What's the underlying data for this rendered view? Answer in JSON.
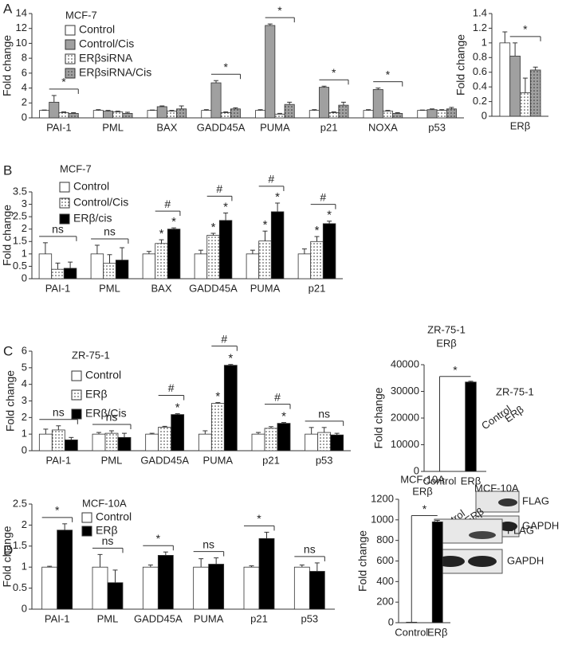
{
  "panels": [
    "A",
    "B",
    "C",
    "D"
  ],
  "chart_data": [
    {
      "type": "bar",
      "title": "MCF-7",
      "ylabel": "Fold change",
      "categories": [
        "PAI-1",
        "PML",
        "BAX",
        "GADD45A",
        "PUMA",
        "p21",
        "NOXA",
        "p53"
      ],
      "series": [
        {
          "name": "Control",
          "color": "#ffffff",
          "values": [
            1,
            1,
            1,
            1,
            1,
            1,
            1,
            1
          ],
          "errors": [
            0.05,
            0.1,
            0.05,
            0.1,
            0.1,
            0.1,
            0.1,
            0.05
          ]
        },
        {
          "name": "Control/Cis",
          "color": "#a0a0a0",
          "values": [
            2.1,
            0.9,
            1.5,
            4.7,
            12.4,
            4.1,
            3.8,
            1.1
          ],
          "errors": [
            0.9,
            0.1,
            0.1,
            0.3,
            0.2,
            0.15,
            0.2,
            0.1
          ]
        },
        {
          "name": "ERβsiRNA",
          "color": "#ffffff",
          "pattern": "dots",
          "values": [
            0.7,
            0.8,
            0.9,
            0.7,
            0.5,
            0.7,
            0.9,
            1.0
          ],
          "errors": [
            0.1,
            0.1,
            0.1,
            0.1,
            0.1,
            0.1,
            0.1,
            0.1
          ]
        },
        {
          "name": "ERβsiRNA/Cis",
          "color": "#a0a0a0",
          "pattern": "dots",
          "values": [
            0.6,
            0.6,
            1.2,
            1.2,
            1.8,
            1.7,
            0.6,
            1.2
          ],
          "errors": [
            0.1,
            0.15,
            0.4,
            0.15,
            0.3,
            0.4,
            0.1,
            0.2
          ]
        }
      ],
      "brackets": [
        "*",
        null,
        null,
        "*",
        "*",
        "*",
        "*",
        null
      ],
      "ylim": [
        0,
        14
      ],
      "yticks": [
        0,
        2,
        4,
        6,
        8,
        10,
        12,
        14
      ]
    },
    {
      "type": "bar",
      "ylabel": "Fold change",
      "categories": [
        "ERβ"
      ],
      "series": [
        {
          "color": "#ffffff",
          "values": [
            1
          ],
          "errors": [
            0.15
          ]
        },
        {
          "color": "#a0a0a0",
          "values": [
            0.82
          ],
          "errors": [
            0.18
          ]
        },
        {
          "color": "#ffffff",
          "pattern": "dots",
          "values": [
            0.32
          ],
          "errors": [
            0.2
          ]
        },
        {
          "color": "#a0a0a0",
          "pattern": "dots",
          "values": [
            0.63
          ],
          "errors": [
            0.04
          ]
        }
      ],
      "brackets": [
        "*"
      ],
      "ylim": [
        0,
        1.4
      ],
      "yticks": [
        0,
        0.2,
        0.4,
        0.6,
        0.8,
        1,
        1.2,
        1.4
      ]
    },
    {
      "type": "bar",
      "title": "MCF-7",
      "ylabel": "Fold change",
      "categories": [
        "PAI-1",
        "PML",
        "BAX",
        "GADD45A",
        "PUMA",
        "p21"
      ],
      "series": [
        {
          "name": "Control",
          "color": "#ffffff",
          "values": [
            1,
            1,
            1,
            1,
            1,
            1
          ],
          "errors": [
            0.45,
            0.35,
            0.1,
            0.15,
            0.15,
            0.2
          ]
        },
        {
          "name": "Control/Cis",
          "color": "#ffffff",
          "pattern": "dots",
          "values": [
            0.38,
            0.62,
            1.42,
            1.75,
            1.52,
            1.5
          ],
          "errors": [
            0.25,
            0.35,
            0.15,
            0.08,
            0.4,
            0.2
          ],
          "marks": [
            null,
            null,
            "*",
            "*",
            "*",
            "*"
          ]
        },
        {
          "name": "ERβ/cis",
          "color": "#000000",
          "values": [
            0.42,
            0.75,
            2.0,
            2.35,
            2.7,
            2.22
          ],
          "errors": [
            0.25,
            0.5,
            0.05,
            0.3,
            0.35,
            0.1
          ],
          "marks": [
            null,
            null,
            "*",
            "*",
            "*",
            "*"
          ]
        }
      ],
      "brackets": [
        "ns",
        "ns",
        "#",
        "#",
        "#",
        "#"
      ],
      "ylim": [
        0,
        3.5
      ],
      "yticks": [
        0,
        0.5,
        1,
        1.5,
        2,
        2.5,
        3,
        3.5
      ]
    },
    {
      "type": "bar",
      "title": "ZR-75-1",
      "ylabel": "Fold change",
      "categories": [
        "PAI-1",
        "PML",
        "GADD45A",
        "PUMA",
        "p21",
        "p53"
      ],
      "series": [
        {
          "name": "Control",
          "color": "#ffffff",
          "values": [
            1,
            1,
            1,
            1,
            1,
            1
          ],
          "errors": [
            0.3,
            0.1,
            0.05,
            0.2,
            0.1,
            0.4
          ]
        },
        {
          "name": "ERβ",
          "color": "#ffffff",
          "pattern": "dots",
          "values": [
            1.25,
            1.05,
            1.42,
            2.85,
            1.35,
            1.1
          ],
          "errors": [
            0.25,
            0.15,
            0.05,
            0.05,
            0.1,
            0.3
          ],
          "marks": [
            null,
            null,
            null,
            "*",
            null,
            null
          ]
        },
        {
          "name": "ERβ/Cis",
          "color": "#000000",
          "values": [
            0.65,
            0.8,
            2.18,
            5.15,
            1.65,
            0.95
          ],
          "errors": [
            0.15,
            0.25,
            0.05,
            0.05,
            0.05,
            0.1
          ],
          "marks": [
            null,
            null,
            "*",
            "*",
            "*",
            null
          ]
        }
      ],
      "brackets": [
        "ns",
        "ns",
        "#",
        "#",
        "#",
        "ns"
      ],
      "ylim": [
        0,
        6
      ],
      "yticks": [
        0,
        1,
        2,
        3,
        4,
        5,
        6
      ]
    },
    {
      "type": "bar",
      "title": [
        "ZR-75-1",
        "ERβ"
      ],
      "ylabel": "Fold change",
      "categories": [
        "Control",
        "ERβ"
      ],
      "series": [
        {
          "color": "#000000",
          "values": [
            1,
            33500
          ],
          "errors": [
            null,
            300
          ]
        }
      ],
      "bracket": "*",
      "ylim": [
        0,
        40000
      ],
      "yticks": [
        0,
        10000,
        20000,
        30000,
        40000
      ]
    },
    {
      "type": "bar",
      "title": "MCF-10A",
      "ylabel": "Fold change",
      "categories": [
        "PAI-1",
        "PML",
        "GADD45A",
        "PUMA",
        "p21",
        "p53"
      ],
      "series": [
        {
          "name": "Control",
          "color": "#ffffff",
          "values": [
            1,
            1,
            1,
            1,
            1,
            1
          ],
          "errors": [
            0.02,
            0.3,
            0.05,
            0.2,
            0.03,
            0.05
          ]
        },
        {
          "name": "ERβ",
          "color": "#000000",
          "values": [
            1.88,
            0.63,
            1.28,
            1.07,
            1.68,
            0.9
          ],
          "errors": [
            0.15,
            0.3,
            0.08,
            0.15,
            0.15,
            0.2
          ]
        }
      ],
      "brackets": [
        "*",
        "ns",
        "*",
        "ns",
        "*",
        "ns"
      ],
      "ylim": [
        0,
        2.5
      ],
      "yticks": [
        0,
        0.5,
        1,
        1.5,
        2,
        2.5
      ]
    },
    {
      "type": "bar",
      "title": [
        "MCF-10A",
        "ERβ"
      ],
      "ylabel": "Fold change",
      "categories": [
        "Control",
        "ERβ"
      ],
      "series": [
        {
          "color": "#000000",
          "values": [
            5,
            980
          ],
          "errors": [
            null,
            15
          ]
        }
      ],
      "bracket": "*",
      "ylim": [
        0,
        1200
      ],
      "yticks": [
        0,
        200,
        400,
        600,
        800,
        1000,
        1200
      ]
    }
  ],
  "blots": [
    {
      "title": "ZR-75-1",
      "lanes": [
        "Control",
        "ERβ"
      ],
      "bands": [
        "FLAG",
        "GAPDH"
      ]
    },
    {
      "title": "MCF-10A",
      "lanes": [
        "Control",
        "ERβ"
      ],
      "bands": [
        "FLAG",
        "GAPDH"
      ]
    }
  ]
}
